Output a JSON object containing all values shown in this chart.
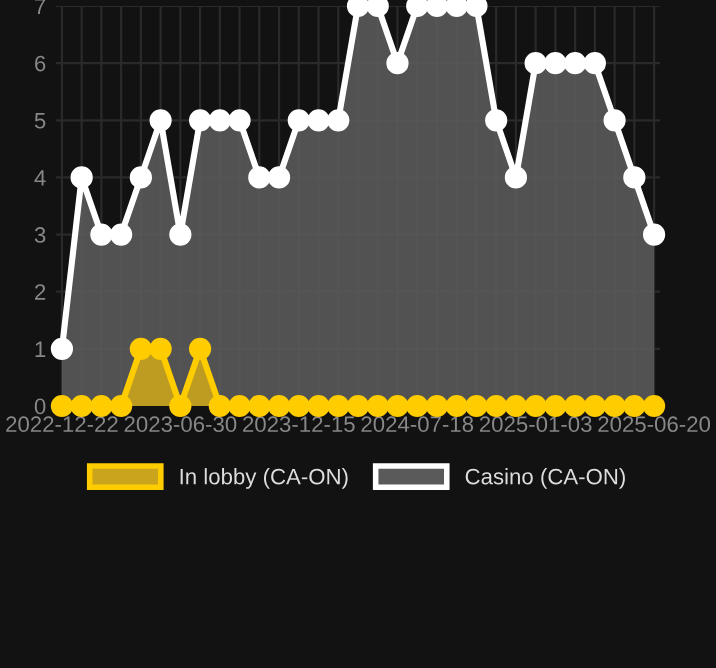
{
  "chart_data": {
    "type": "area",
    "categories": [
      "2022-12-22",
      null,
      null,
      null,
      null,
      null,
      "2023-06-30",
      null,
      null,
      null,
      null,
      null,
      "2023-12-15",
      null,
      null,
      null,
      null,
      null,
      "2024-07-18",
      null,
      null,
      null,
      null,
      null,
      "2025-01-03",
      null,
      null,
      null,
      null,
      null,
      "2025-06-20"
    ],
    "series": [
      {
        "name": "Casino (CA-ON)",
        "color": "#ffffff",
        "values": [
          1,
          4,
          3,
          3,
          4,
          5,
          3,
          5,
          5,
          5,
          4,
          4,
          5,
          5,
          5,
          7,
          7,
          6,
          7,
          7,
          7,
          7,
          5,
          4,
          6,
          6,
          6,
          6,
          5,
          4,
          3
        ]
      },
      {
        "name": "In lobby (CA-ON)",
        "color": "#ffcc00",
        "values": [
          0,
          0,
          0,
          0,
          1,
          1,
          0,
          1,
          0,
          0,
          0,
          0,
          0,
          0,
          0,
          0,
          0,
          0,
          0,
          0,
          0,
          0,
          0,
          0,
          0,
          0,
          0,
          0,
          0,
          0,
          0
        ]
      }
    ],
    "ylim": [
      0,
      7
    ],
    "yticks": [
      0,
      1,
      2,
      3,
      4,
      5,
      6,
      7
    ],
    "grid": true,
    "legend": "bottom",
    "marker": "circle",
    "line_style": "solid"
  }
}
